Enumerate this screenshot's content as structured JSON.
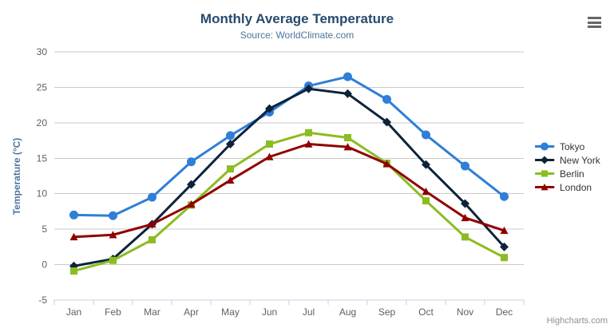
{
  "chart_data": {
    "type": "line",
    "title": "Monthly Average Temperature",
    "subtitle": "Source: WorldClimate.com",
    "xlabel": "",
    "ylabel": "Temperature (°C)",
    "categories": [
      "Jan",
      "Feb",
      "Mar",
      "Apr",
      "May",
      "Jun",
      "Jul",
      "Aug",
      "Sep",
      "Oct",
      "Nov",
      "Dec"
    ],
    "ylim": [
      -5,
      30
    ],
    "ytick_interval": 5,
    "grid": true,
    "legend_position": "right",
    "series": [
      {
        "name": "Tokyo",
        "color": "#2f7ed8",
        "marker": "circle",
        "values": [
          7.0,
          6.9,
          9.5,
          14.5,
          18.2,
          21.5,
          25.2,
          26.5,
          23.3,
          18.3,
          13.9,
          9.6
        ]
      },
      {
        "name": "New York",
        "color": "#0d233a",
        "marker": "diamond",
        "values": [
          -0.2,
          0.8,
          5.7,
          11.3,
          17.0,
          22.0,
          24.8,
          24.1,
          20.1,
          14.1,
          8.6,
          2.5
        ]
      },
      {
        "name": "Berlin",
        "color": "#8bbc21",
        "marker": "square",
        "values": [
          -0.9,
          0.6,
          3.5,
          8.4,
          13.5,
          17.0,
          18.6,
          17.9,
          14.3,
          9.0,
          3.9,
          1.0
        ]
      },
      {
        "name": "London",
        "color": "#910000",
        "marker": "triangle",
        "values": [
          3.9,
          4.2,
          5.7,
          8.5,
          11.9,
          15.2,
          17.0,
          16.6,
          14.2,
          10.3,
          6.6,
          4.8
        ]
      }
    ],
    "colors": {
      "title": "#274b6d",
      "subtitle": "#4d759e",
      "axis_label": "#606060",
      "gridline": "#c9c9c9",
      "axis_line": "#c0d0e0",
      "legend_text": "#333333"
    },
    "credits": "Highcharts.com"
  },
  "toolbar": {
    "menu_icon": "hamburger-icon"
  }
}
